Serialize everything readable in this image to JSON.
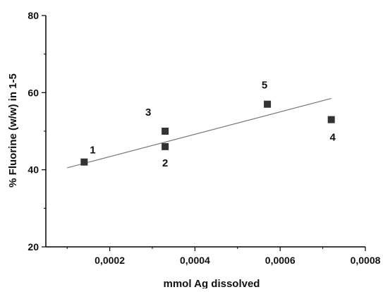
{
  "chart_data": {
    "type": "scatter",
    "title": "",
    "xlabel": "mmol Ag dissolved",
    "ylabel": "% Fluorine (w/w) in 1-5",
    "xlim": [
      5e-05,
      0.0008
    ],
    "ylim": [
      20,
      80
    ],
    "x_ticks": [
      {
        "value": 0.0002,
        "label": "0,0002"
      },
      {
        "value": 0.0004,
        "label": "0,0004"
      },
      {
        "value": 0.0006,
        "label": "0,0006"
      },
      {
        "value": 0.0008,
        "label": "0,0008"
      }
    ],
    "y_ticks": [
      {
        "value": 20,
        "label": "20"
      },
      {
        "value": 40,
        "label": "40"
      },
      {
        "value": 60,
        "label": "60"
      },
      {
        "value": 80,
        "label": "80"
      }
    ],
    "grid": false,
    "points": [
      {
        "label": "1",
        "x": 0.00014,
        "y": 42
      },
      {
        "label": "2",
        "x": 0.00033,
        "y": 46
      },
      {
        "label": "3",
        "x": 0.00033,
        "y": 50
      },
      {
        "label": "4",
        "x": 0.00072,
        "y": 53
      },
      {
        "label": "5",
        "x": 0.00057,
        "y": 57
      }
    ],
    "fit_line": {
      "x": [
        0.0001,
        0.00072
      ],
      "y": [
        40.5,
        58.5
      ]
    },
    "marker_color": "#333333",
    "line_color": "#777777"
  }
}
